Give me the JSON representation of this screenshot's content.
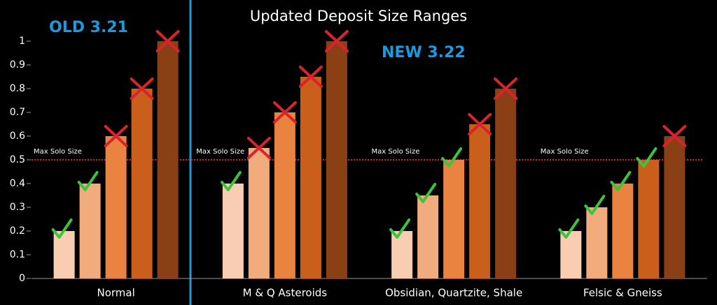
{
  "chart_data": {
    "type": "bar",
    "title": "Updated Deposit Size Ranges",
    "annotations": [
      "OLD 3.21",
      "NEW 3.22"
    ],
    "threshold": 0.5,
    "threshold_label": "Max Solo Size",
    "categories": [
      "Normal",
      "M & Q Asteroids",
      "Obsidian, Quartzite, Shale",
      "Felsic & Gneiss"
    ],
    "series": [
      {
        "color": "#f8cdb2",
        "values": [
          0.2,
          0.4,
          0.2,
          0.2
        ]
      },
      {
        "color": "#f1ab7c",
        "values": [
          0.4,
          0.55,
          0.35,
          0.3
        ]
      },
      {
        "color": "#e9833f",
        "values": [
          0.6,
          0.7,
          0.5,
          0.4
        ]
      },
      {
        "color": "#c95f1b",
        "values": [
          0.8,
          0.85,
          0.65,
          0.5
        ]
      },
      {
        "color": "#8a3f14",
        "values": [
          1,
          1,
          0.8,
          0.6
        ]
      }
    ],
    "ylim": [
      0,
      1
    ],
    "yticks": [
      0,
      0.1,
      0.2,
      0.3,
      0.4,
      0.5,
      0.6,
      0.7,
      0.8,
      0.9,
      1
    ]
  }
}
